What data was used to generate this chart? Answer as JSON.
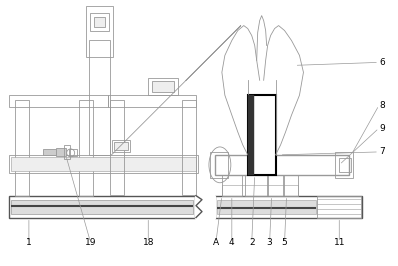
{
  "line_color": "#999999",
  "dark_color": "#555555",
  "black": "#000000",
  "white": "#ffffff",
  "gray_fill": "#cccccc",
  "label_fontsize": 6.5,
  "fig_w": 3.98,
  "fig_h": 2.66,
  "dpi": 100
}
